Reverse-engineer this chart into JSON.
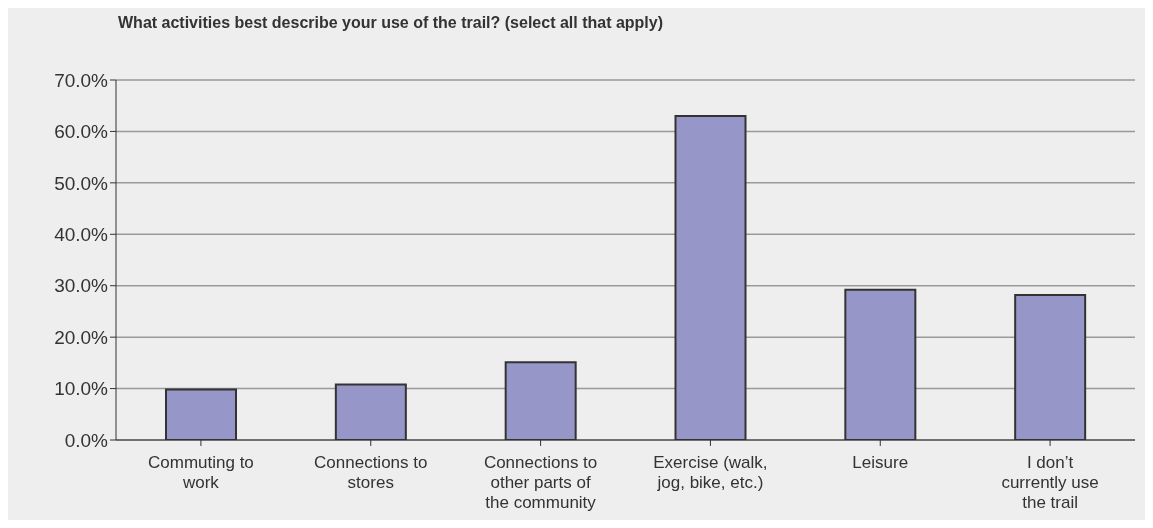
{
  "chart_data": {
    "type": "bar",
    "title": "What activities best describe your use of the trail? (select all that apply)",
    "categories": [
      "Commuting to work",
      "Connections to stores",
      "Connections to other parts of the community",
      "Exercise (walk, jog, bike, etc.)",
      "Leisure",
      "I don’t currently use the trail"
    ],
    "values": [
      9.8,
      10.8,
      15.1,
      63.0,
      29.2,
      28.2
    ],
    "color": "#9696c8",
    "ylim": [
      0,
      70
    ],
    "yticks": [
      {
        "value": 0,
        "label": "0.0%"
      },
      {
        "value": 10,
        "label": "10.0%"
      },
      {
        "value": 20,
        "label": "20.0%"
      },
      {
        "value": 30,
        "label": "30.0%"
      },
      {
        "value": 40,
        "label": "40.0%"
      },
      {
        "value": 50,
        "label": "50.0%"
      },
      {
        "value": 60,
        "label": "60.0%"
      },
      {
        "value": 70,
        "label": "70.0%"
      }
    ],
    "grid": "y",
    "legend": false
  }
}
